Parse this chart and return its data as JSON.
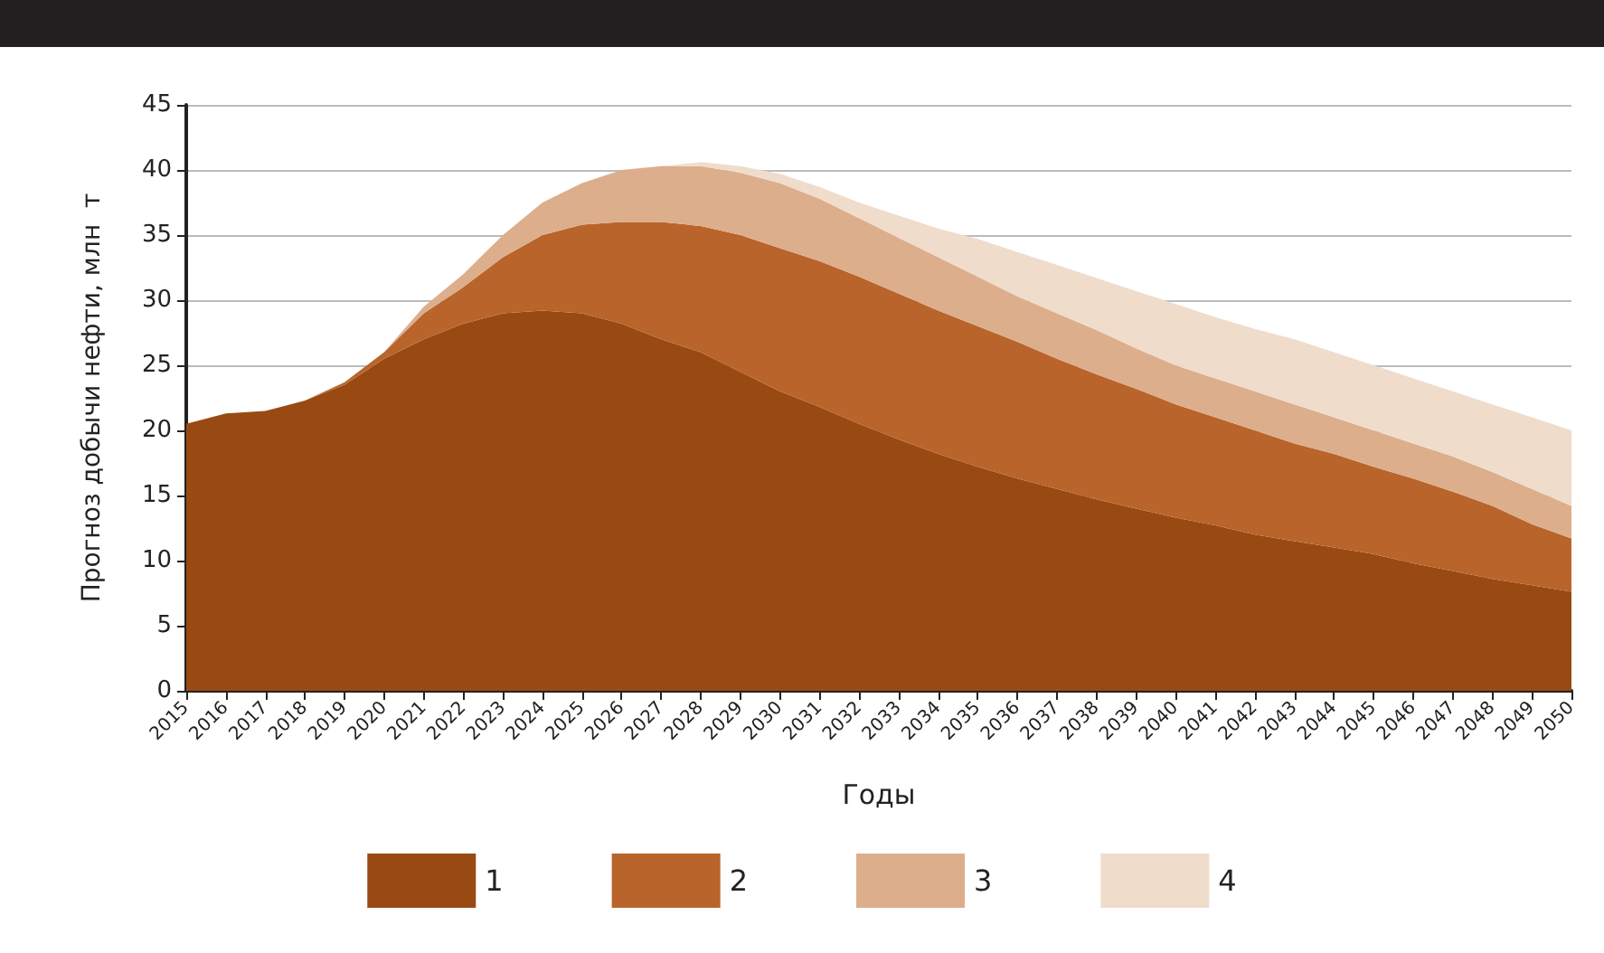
{
  "chart_data": {
    "type": "area",
    "stacked": true,
    "xlabel": "Годы",
    "ylabel": "Прогноз добычи нефти, млн  т",
    "categories": [
      "2015",
      "2016",
      "2017",
      "2018",
      "2019",
      "2020",
      "2021",
      "2022",
      "2023",
      "2024",
      "2025",
      "2026",
      "2027",
      "2028",
      "2029",
      "2030",
      "2031",
      "2032",
      "2033",
      "2034",
      "2035",
      "2036",
      "2037",
      "2038",
      "2039",
      "2040",
      "2041",
      "2042",
      "2043",
      "2044",
      "2045",
      "2046",
      "2047",
      "2048",
      "2049",
      "2050"
    ],
    "series": [
      {
        "name": "1",
        "color": "#994a12",
        "values": [
          20.5,
          21.3,
          21.5,
          22.3,
          23.5,
          25.5,
          27,
          28.2,
          29,
          29.2,
          29,
          28.2,
          27,
          26,
          24.5,
          23,
          21.8,
          20.5,
          19.3,
          18.2,
          17.2,
          16.3,
          15.5,
          14.7,
          14,
          13.3,
          12.7,
          12,
          11.5,
          11,
          10.5,
          9.8,
          9.2,
          8.6,
          8.1,
          7.6
        ]
      },
      {
        "name": "2",
        "color": "#b9642a",
        "values": [
          0,
          0,
          0,
          0,
          0.2,
          0.5,
          2,
          2.8,
          4.3,
          5.8,
          6.8,
          7.8,
          9,
          9.7,
          10.5,
          11,
          11.2,
          11.3,
          11.2,
          11,
          10.8,
          10.5,
          10,
          9.6,
          9.2,
          8.7,
          8.3,
          8,
          7.5,
          7.2,
          6.7,
          6.5,
          6.1,
          5.6,
          4.7,
          4.1
        ]
      },
      {
        "name": "3",
        "color": "#dcae8c",
        "values": [
          0,
          0,
          0,
          0,
          0,
          0,
          0.5,
          1,
          1.7,
          2.5,
          3.2,
          4,
          4.3,
          4.6,
          4.8,
          5,
          4.8,
          4.5,
          4.3,
          4.1,
          3.8,
          3.5,
          3.5,
          3.4,
          3.1,
          3,
          3,
          3,
          3,
          2.8,
          2.8,
          2.7,
          2.7,
          2.6,
          2.7,
          2.5
        ]
      },
      {
        "name": "4",
        "color": "#f0dccb",
        "values": [
          0,
          0,
          0,
          0,
          0,
          0,
          0,
          0,
          0,
          0,
          0,
          0,
          0,
          0.3,
          0.5,
          0.7,
          0.9,
          1.2,
          1.7,
          2.2,
          2.9,
          3.4,
          3.7,
          4,
          4.4,
          4.7,
          4.7,
          4.8,
          5,
          5,
          5,
          5,
          5,
          5.2,
          5.5,
          5.8
        ]
      }
    ],
    "ylim": [
      0,
      45
    ],
    "yticks": [
      0,
      5,
      10,
      15,
      20,
      25,
      30,
      35,
      40,
      45
    ],
    "grid": "y",
    "legend": "bottom"
  }
}
